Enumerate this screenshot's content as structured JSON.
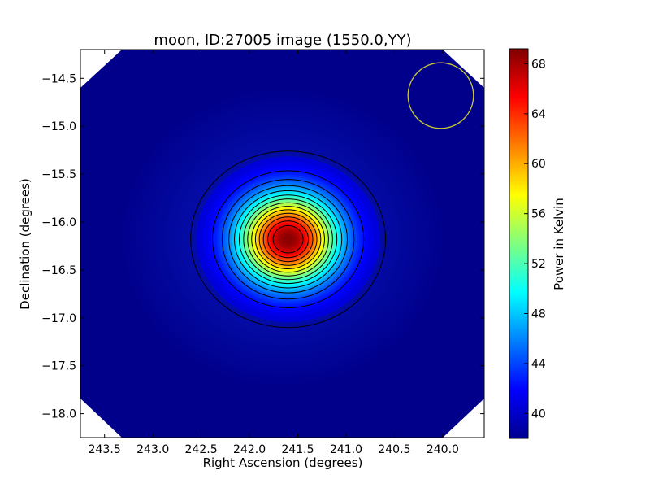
{
  "chart_data": {
    "type": "heatmap",
    "title": "moon, ID:27005 image (1550.0,YY)",
    "xlabel": "Right Ascension (degrees)",
    "ylabel": "Declination (degrees)",
    "xlim": [
      243.75,
      239.57
    ],
    "ylim": [
      -18.25,
      -14.2
    ],
    "x_ticks": [
      243.5,
      243.0,
      242.5,
      242.0,
      241.5,
      241.0,
      240.5,
      240.0
    ],
    "x_tick_labels": [
      "243.5",
      "243.0",
      "242.5",
      "242.0",
      "241.5",
      "241.0",
      "240.5",
      "240.0"
    ],
    "y_ticks": [
      -14.5,
      -15.0,
      -15.5,
      -16.0,
      -16.5,
      -17.0,
      -17.5,
      -18.0
    ],
    "y_tick_labels": [
      "−14.5",
      "−15.0",
      "−15.5",
      "−16.0",
      "−16.5",
      "−17.0",
      "−17.5",
      "−18.0"
    ],
    "colormap": "jet",
    "colorbar": {
      "label": "Power in Kelvin",
      "min": 38.0,
      "max": 69.2,
      "ticks": [
        40,
        44,
        48,
        52,
        56,
        60,
        64,
        68
      ],
      "tick_labels": [
        "40",
        "44",
        "48",
        "52",
        "56",
        "60",
        "64",
        "68"
      ]
    },
    "source": {
      "name": "moon",
      "center_ra": 241.6,
      "center_dec": -16.18,
      "peak_kelvin": 69.2,
      "background_kelvin": 40.0
    },
    "contour_levels": [
      40.5,
      42.5,
      44.5,
      46.5,
      48.5,
      50.5,
      52.5,
      54.5,
      56.5,
      58.5,
      60.5,
      62.5,
      64.5,
      66.5
    ],
    "beam": {
      "center_ra": 240.02,
      "center_dec": -14.68,
      "radius_deg": 0.36,
      "color": "#c8c832"
    },
    "background_color": "#00008b",
    "corner_masks": "white triangles at the four corners",
    "grid": false
  }
}
